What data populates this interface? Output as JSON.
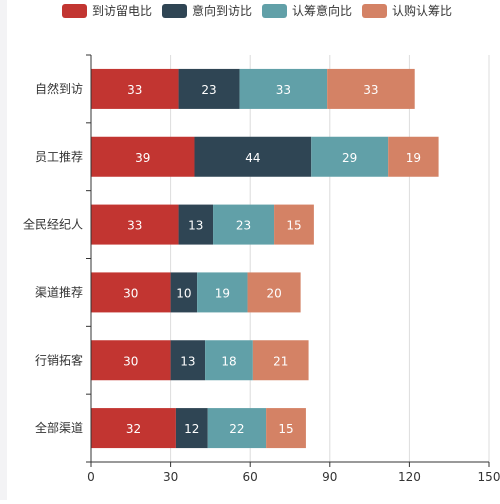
{
  "chart_data": {
    "type": "bar",
    "orientation": "horizontal",
    "stacked": true,
    "categories": [
      "自然到访",
      "员工推荐",
      "全民经纪人",
      "渠道推荐",
      "行销拓客",
      "全部渠道"
    ],
    "series": [
      {
        "name": "到访留电比",
        "color": "#c23531",
        "values": [
          33,
          39,
          33,
          30,
          30,
          32
        ]
      },
      {
        "name": "意向到访比",
        "color": "#2f4554",
        "values": [
          23,
          44,
          13,
          10,
          13,
          12
        ]
      },
      {
        "name": "认筹意向比",
        "color": "#61a0a8",
        "values": [
          33,
          29,
          23,
          19,
          18,
          22
        ]
      },
      {
        "name": "认购认筹比",
        "color": "#d48265",
        "values": [
          33,
          19,
          15,
          20,
          21,
          15
        ]
      }
    ],
    "xlim": [
      0,
      150
    ],
    "x_ticks": [
      0,
      30,
      60,
      90,
      120,
      150
    ],
    "grid": "vertical",
    "legend": "top-center",
    "title": "",
    "xlabel": "",
    "ylabel": ""
  }
}
